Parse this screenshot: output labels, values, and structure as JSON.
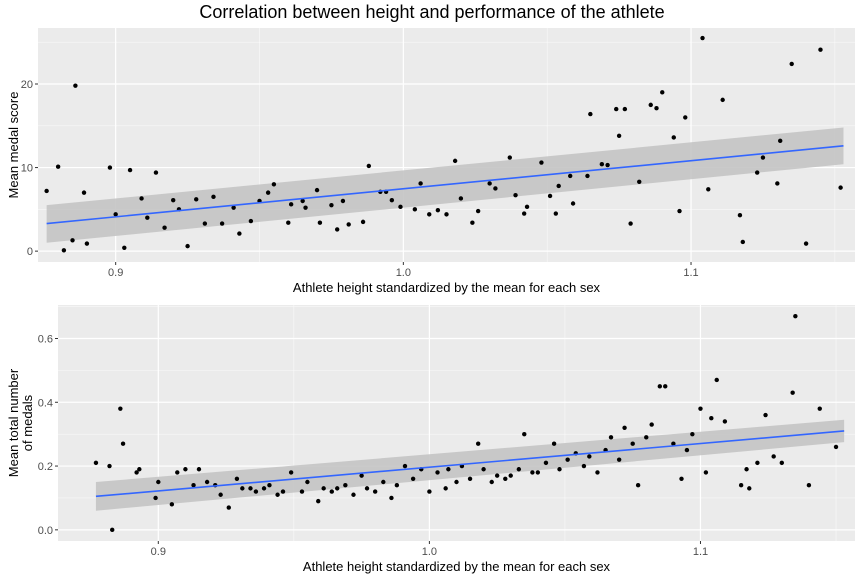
{
  "figure": {
    "title": "Correlation between height and performance of the athlete"
  },
  "colors": {
    "panel_background": "#ebebeb",
    "grid_major": "#ffffff",
    "ribbon": "#c4c4c4",
    "smooth_line": "#3366ff",
    "points": "#000000"
  },
  "chart_data": [
    {
      "type": "scatter",
      "title": "Correlation between height and performance of the athlete",
      "xlabel": "Athlete height standardized by the mean for each sex",
      "ylabel": "Mean medal score",
      "xlim": [
        0.873,
        1.157
      ],
      "ylim": [
        -1.3,
        26.7
      ],
      "x_ticks": [
        0.9,
        1.0,
        1.1
      ],
      "x_tick_labels": [
        "0.9",
        "1.0",
        "1.1"
      ],
      "y_ticks": [
        0,
        10,
        20
      ],
      "y_tick_labels": [
        "0",
        "10",
        "20"
      ],
      "grid": true,
      "smooth": {
        "method": "lm",
        "x": [
          0.876,
          1.153
        ],
        "y": [
          3.3,
          12.6
        ],
        "ribbon_lower": [
          1.0,
          10.4
        ],
        "ribbon_upper": [
          5.5,
          14.8
        ]
      },
      "points": [
        [
          0.876,
          7.2
        ],
        [
          0.88,
          10.1
        ],
        [
          0.882,
          0.1
        ],
        [
          0.885,
          1.3
        ],
        [
          0.886,
          19.8
        ],
        [
          0.889,
          7.0
        ],
        [
          0.89,
          0.9
        ],
        [
          0.898,
          10.0
        ],
        [
          0.9,
          4.4
        ],
        [
          0.903,
          0.4
        ],
        [
          0.905,
          9.7
        ],
        [
          0.909,
          6.3
        ],
        [
          0.911,
          4.0
        ],
        [
          0.914,
          9.4
        ],
        [
          0.917,
          2.8
        ],
        [
          0.92,
          6.1
        ],
        [
          0.922,
          5.0
        ],
        [
          0.925,
          0.6
        ],
        [
          0.928,
          6.2
        ],
        [
          0.931,
          3.3
        ],
        [
          0.934,
          6.5
        ],
        [
          0.937,
          3.3
        ],
        [
          0.941,
          5.2
        ],
        [
          0.943,
          2.1
        ],
        [
          0.947,
          3.6
        ],
        [
          0.95,
          6.0
        ],
        [
          0.953,
          7.0
        ],
        [
          0.955,
          8.0
        ],
        [
          0.96,
          3.4
        ],
        [
          0.961,
          5.6
        ],
        [
          0.965,
          6.0
        ],
        [
          0.966,
          5.2
        ],
        [
          0.97,
          7.3
        ],
        [
          0.971,
          3.4
        ],
        [
          0.975,
          5.5
        ],
        [
          0.977,
          2.6
        ],
        [
          0.979,
          6.0
        ],
        [
          0.981,
          3.2
        ],
        [
          0.986,
          3.5
        ],
        [
          0.988,
          10.2
        ],
        [
          0.992,
          7.1
        ],
        [
          0.994,
          7.1
        ],
        [
          0.996,
          6.1
        ],
        [
          0.999,
          5.3
        ],
        [
          1.004,
          5.0
        ],
        [
          1.006,
          8.1
        ],
        [
          1.009,
          4.4
        ],
        [
          1.012,
          4.9
        ],
        [
          1.015,
          4.4
        ],
        [
          1.018,
          10.8
        ],
        [
          1.02,
          6.3
        ],
        [
          1.024,
          3.4
        ],
        [
          1.026,
          4.8
        ],
        [
          1.03,
          8.1
        ],
        [
          1.032,
          7.5
        ],
        [
          1.037,
          11.2
        ],
        [
          1.039,
          6.7
        ],
        [
          1.042,
          4.5
        ],
        [
          1.043,
          5.3
        ],
        [
          1.048,
          10.6
        ],
        [
          1.051,
          6.6
        ],
        [
          1.053,
          4.5
        ],
        [
          1.054,
          7.8
        ],
        [
          1.058,
          9.0
        ],
        [
          1.059,
          5.7
        ],
        [
          1.064,
          9.0
        ],
        [
          1.065,
          16.4
        ],
        [
          1.069,
          10.4
        ],
        [
          1.071,
          10.3
        ],
        [
          1.074,
          17.0
        ],
        [
          1.075,
          13.8
        ],
        [
          1.077,
          17.0
        ],
        [
          1.079,
          3.3
        ],
        [
          1.082,
          8.3
        ],
        [
          1.086,
          17.5
        ],
        [
          1.088,
          17.1
        ],
        [
          1.09,
          19.0
        ],
        [
          1.094,
          13.6
        ],
        [
          1.096,
          4.8
        ],
        [
          1.098,
          16.0
        ],
        [
          1.104,
          25.5
        ],
        [
          1.106,
          7.4
        ],
        [
          1.111,
          18.1
        ],
        [
          1.117,
          4.3
        ],
        [
          1.118,
          1.1
        ],
        [
          1.123,
          9.4
        ],
        [
          1.125,
          11.2
        ],
        [
          1.13,
          8.1
        ],
        [
          1.131,
          13.2
        ],
        [
          1.135,
          22.4
        ],
        [
          1.14,
          0.9
        ],
        [
          1.145,
          24.1
        ],
        [
          1.152,
          7.6
        ]
      ]
    },
    {
      "type": "scatter",
      "xlabel": "Athlete height standardized by the mean for each sex",
      "ylabel": "Mean total number of medals",
      "ylabel_lines": [
        "Mean total number",
        "of medals"
      ],
      "xlim": [
        0.863,
        1.157
      ],
      "ylim": [
        -0.035,
        0.705
      ],
      "x_ticks": [
        0.9,
        1.0,
        1.1
      ],
      "x_tick_labels": [
        "0.9",
        "1.0",
        "1.1"
      ],
      "y_ticks": [
        0.0,
        0.2,
        0.4,
        0.6
      ],
      "y_tick_labels": [
        "0.0",
        "0.2",
        "0.4",
        "0.6"
      ],
      "grid": true,
      "smooth": {
        "method": "lm",
        "x": [
          0.877,
          1.153
        ],
        "y": [
          0.105,
          0.31
        ],
        "ribbon_lower": [
          0.06,
          0.275
        ],
        "ribbon_upper": [
          0.15,
          0.345
        ]
      },
      "points": [
        [
          0.877,
          0.21
        ],
        [
          0.882,
          0.2
        ],
        [
          0.883,
          0.0
        ],
        [
          0.886,
          0.38
        ],
        [
          0.887,
          0.27
        ],
        [
          0.892,
          0.18
        ],
        [
          0.893,
          0.19
        ],
        [
          0.899,
          0.1
        ],
        [
          0.9,
          0.15
        ],
        [
          0.905,
          0.08
        ],
        [
          0.907,
          0.18
        ],
        [
          0.91,
          0.19
        ],
        [
          0.913,
          0.14
        ],
        [
          0.915,
          0.19
        ],
        [
          0.918,
          0.15
        ],
        [
          0.921,
          0.14
        ],
        [
          0.923,
          0.11
        ],
        [
          0.926,
          0.07
        ],
        [
          0.929,
          0.16
        ],
        [
          0.931,
          0.13
        ],
        [
          0.934,
          0.13
        ],
        [
          0.936,
          0.12
        ],
        [
          0.939,
          0.13
        ],
        [
          0.941,
          0.14
        ],
        [
          0.944,
          0.11
        ],
        [
          0.946,
          0.12
        ],
        [
          0.949,
          0.18
        ],
        [
          0.953,
          0.12
        ],
        [
          0.955,
          0.15
        ],
        [
          0.959,
          0.09
        ],
        [
          0.961,
          0.13
        ],
        [
          0.964,
          0.12
        ],
        [
          0.966,
          0.13
        ],
        [
          0.969,
          0.14
        ],
        [
          0.972,
          0.11
        ],
        [
          0.975,
          0.17
        ],
        [
          0.977,
          0.13
        ],
        [
          0.98,
          0.12
        ],
        [
          0.983,
          0.15
        ],
        [
          0.986,
          0.1
        ],
        [
          0.988,
          0.14
        ],
        [
          0.991,
          0.2
        ],
        [
          0.994,
          0.16
        ],
        [
          0.997,
          0.19
        ],
        [
          1.0,
          0.12
        ],
        [
          1.003,
          0.18
        ],
        [
          1.006,
          0.13
        ],
        [
          1.007,
          0.19
        ],
        [
          1.01,
          0.15
        ],
        [
          1.012,
          0.2
        ],
        [
          1.015,
          0.16
        ],
        [
          1.018,
          0.27
        ],
        [
          1.02,
          0.19
        ],
        [
          1.023,
          0.15
        ],
        [
          1.025,
          0.17
        ],
        [
          1.028,
          0.16
        ],
        [
          1.03,
          0.17
        ],
        [
          1.033,
          0.19
        ],
        [
          1.035,
          0.3
        ],
        [
          1.038,
          0.18
        ],
        [
          1.04,
          0.18
        ],
        [
          1.043,
          0.21
        ],
        [
          1.046,
          0.27
        ],
        [
          1.048,
          0.19
        ],
        [
          1.051,
          0.22
        ],
        [
          1.054,
          0.24
        ],
        [
          1.057,
          0.2
        ],
        [
          1.059,
          0.23
        ],
        [
          1.062,
          0.18
        ],
        [
          1.065,
          0.25
        ],
        [
          1.067,
          0.29
        ],
        [
          1.07,
          0.22
        ],
        [
          1.072,
          0.32
        ],
        [
          1.075,
          0.27
        ],
        [
          1.077,
          0.14
        ],
        [
          1.08,
          0.29
        ],
        [
          1.082,
          0.33
        ],
        [
          1.085,
          0.45
        ],
        [
          1.087,
          0.45
        ],
        [
          1.09,
          0.27
        ],
        [
          1.093,
          0.16
        ],
        [
          1.095,
          0.25
        ],
        [
          1.097,
          0.3
        ],
        [
          1.1,
          0.38
        ],
        [
          1.102,
          0.18
        ],
        [
          1.104,
          0.35
        ],
        [
          1.106,
          0.47
        ],
        [
          1.109,
          0.34
        ],
        [
          1.115,
          0.14
        ],
        [
          1.117,
          0.19
        ],
        [
          1.118,
          0.13
        ],
        [
          1.121,
          0.21
        ],
        [
          1.124,
          0.36
        ],
        [
          1.127,
          0.23
        ],
        [
          1.13,
          0.21
        ],
        [
          1.134,
          0.43
        ],
        [
          1.135,
          0.67
        ],
        [
          1.14,
          0.14
        ],
        [
          1.144,
          0.38
        ],
        [
          1.15,
          0.26
        ]
      ]
    }
  ]
}
